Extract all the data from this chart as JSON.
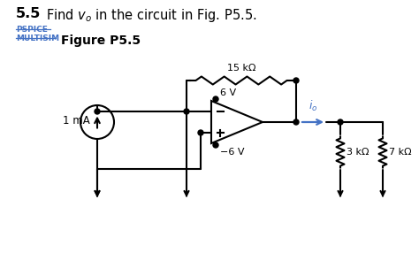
{
  "bg_color": "#ffffff",
  "line_color": "#000000",
  "blue_color": "#4472c4",
  "current_source_label": "1 mA",
  "resistor_15k": "15 kΩ",
  "resistor_3k": "3 kΩ",
  "resistor_7k": "7 kΩ",
  "voltage_6": "6 V",
  "voltage_neg6": "−6 V",
  "io_label": "$i_o$",
  "title_num": "5.5",
  "title_rest": "Find $v_o$ in the circuit in Fig. P5.5.",
  "pspice": "PSPICE",
  "multisim": "MULTISIM",
  "figure_label": "Figure P5.5"
}
